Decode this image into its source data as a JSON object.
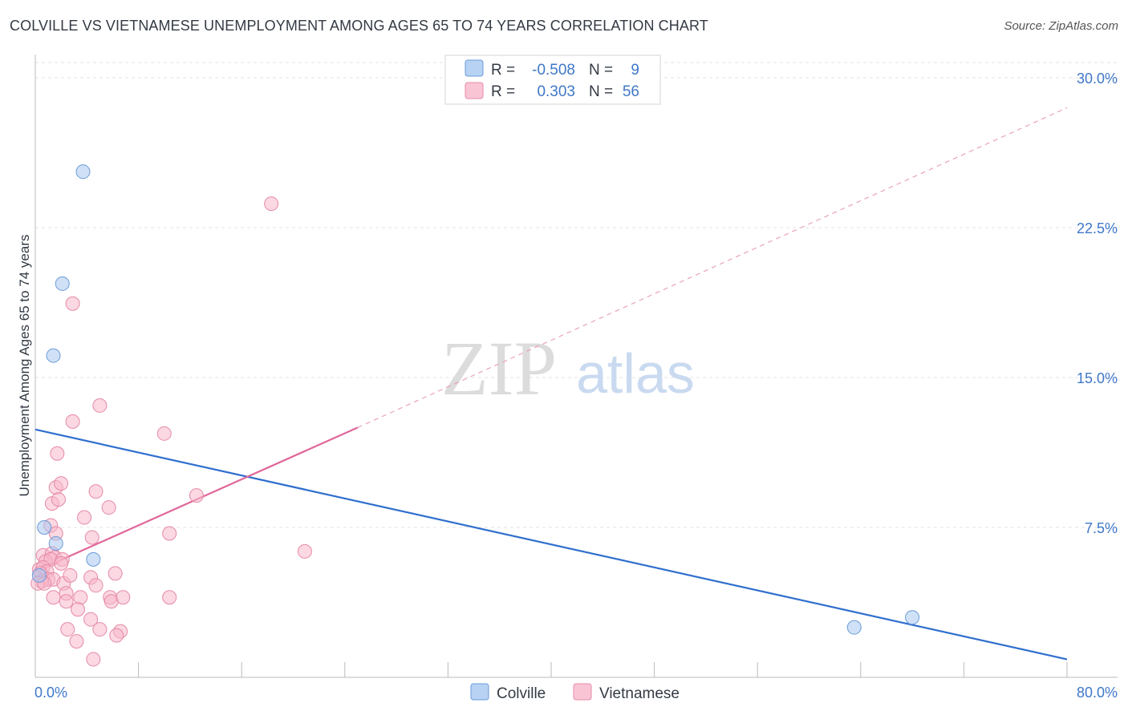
{
  "chart_data": {
    "type": "scatter",
    "title": "COLVILLE VS VIETNAMESE UNEMPLOYMENT AMONG AGES 65 TO 74 YEARS CORRELATION CHART",
    "source": "Source: ZipAtlas.com",
    "xlabel": "",
    "ylabel": "Unemployment Among Ages 65 to 74 years",
    "xlim": [
      0,
      80
    ],
    "ylim": [
      0,
      30
    ],
    "x_tick_labels": [
      "0.0%",
      "80.0%"
    ],
    "y_ticks": [
      7.5,
      15.0,
      22.5,
      30.0
    ],
    "y_tick_labels": [
      "7.5%",
      "15.0%",
      "22.5%",
      "30.0%"
    ],
    "grid": true,
    "watermark": {
      "zip": "ZIP",
      "atlas": "atlas"
    },
    "legend_position": "top-center",
    "series": [
      {
        "name": "Colville",
        "color": "#a9c8f0",
        "stroke": "#6a9bd8",
        "line_color": "#2f6fce",
        "R_label": "R =",
        "R": "-0.508",
        "N_label": "N =",
        "N": "9",
        "trend": {
          "x": [
            0,
            80
          ],
          "y": [
            12.4,
            0.9
          ],
          "dashed_ext": false
        },
        "points": [
          [
            3.7,
            25.3
          ],
          [
            2.1,
            19.7
          ],
          [
            1.4,
            16.1
          ],
          [
            0.7,
            7.5
          ],
          [
            1.6,
            6.7
          ],
          [
            4.5,
            5.9
          ],
          [
            68.0,
            3.0
          ],
          [
            63.5,
            2.5
          ],
          [
            0.3,
            5.1
          ]
        ]
      },
      {
        "name": "Vietnamese",
        "color": "#f7b8cb",
        "stroke": "#e68aa8",
        "line_color": "#e0669a",
        "R_label": "R =",
        "R": "0.303",
        "N_label": "N =",
        "N": "56",
        "trend": {
          "x": [
            0,
            25
          ],
          "y": [
            5.3,
            12.5
          ],
          "ext_x": [
            25,
            80
          ],
          "ext_y": [
            12.5,
            28.5
          ]
        },
        "points": [
          [
            18.3,
            23.7
          ],
          [
            2.9,
            18.7
          ],
          [
            5.0,
            13.6
          ],
          [
            2.9,
            12.8
          ],
          [
            10.0,
            12.2
          ],
          [
            1.7,
            11.2
          ],
          [
            1.6,
            9.5
          ],
          [
            2.0,
            9.7
          ],
          [
            4.7,
            9.3
          ],
          [
            12.5,
            9.1
          ],
          [
            1.3,
            8.7
          ],
          [
            1.8,
            8.9
          ],
          [
            5.7,
            8.5
          ],
          [
            3.8,
            8.0
          ],
          [
            1.2,
            7.6
          ],
          [
            1.6,
            7.2
          ],
          [
            4.4,
            7.0
          ],
          [
            10.4,
            7.2
          ],
          [
            20.9,
            6.3
          ],
          [
            0.6,
            6.1
          ],
          [
            1.3,
            6.2
          ],
          [
            1.5,
            6.0
          ],
          [
            0.8,
            5.8
          ],
          [
            1.2,
            5.9
          ],
          [
            2.1,
            5.9
          ],
          [
            2.0,
            5.7
          ],
          [
            0.3,
            5.4
          ],
          [
            0.6,
            5.5
          ],
          [
            0.9,
            5.3
          ],
          [
            0.4,
            5.2
          ],
          [
            1.0,
            4.9
          ],
          [
            1.4,
            4.9
          ],
          [
            0.5,
            4.8
          ],
          [
            0.2,
            4.7
          ],
          [
            0.7,
            4.7
          ],
          [
            2.2,
            4.7
          ],
          [
            2.7,
            5.1
          ],
          [
            4.3,
            5.0
          ],
          [
            6.2,
            5.2
          ],
          [
            4.7,
            4.6
          ],
          [
            1.4,
            4.0
          ],
          [
            2.4,
            4.2
          ],
          [
            2.4,
            3.8
          ],
          [
            3.5,
            4.0
          ],
          [
            5.8,
            4.0
          ],
          [
            5.9,
            3.8
          ],
          [
            6.8,
            4.0
          ],
          [
            10.4,
            4.0
          ],
          [
            3.3,
            3.4
          ],
          [
            4.3,
            2.9
          ],
          [
            2.5,
            2.4
          ],
          [
            5.0,
            2.4
          ],
          [
            6.6,
            2.3
          ],
          [
            6.3,
            2.1
          ],
          [
            3.2,
            1.8
          ],
          [
            4.5,
            0.9
          ]
        ]
      }
    ]
  }
}
